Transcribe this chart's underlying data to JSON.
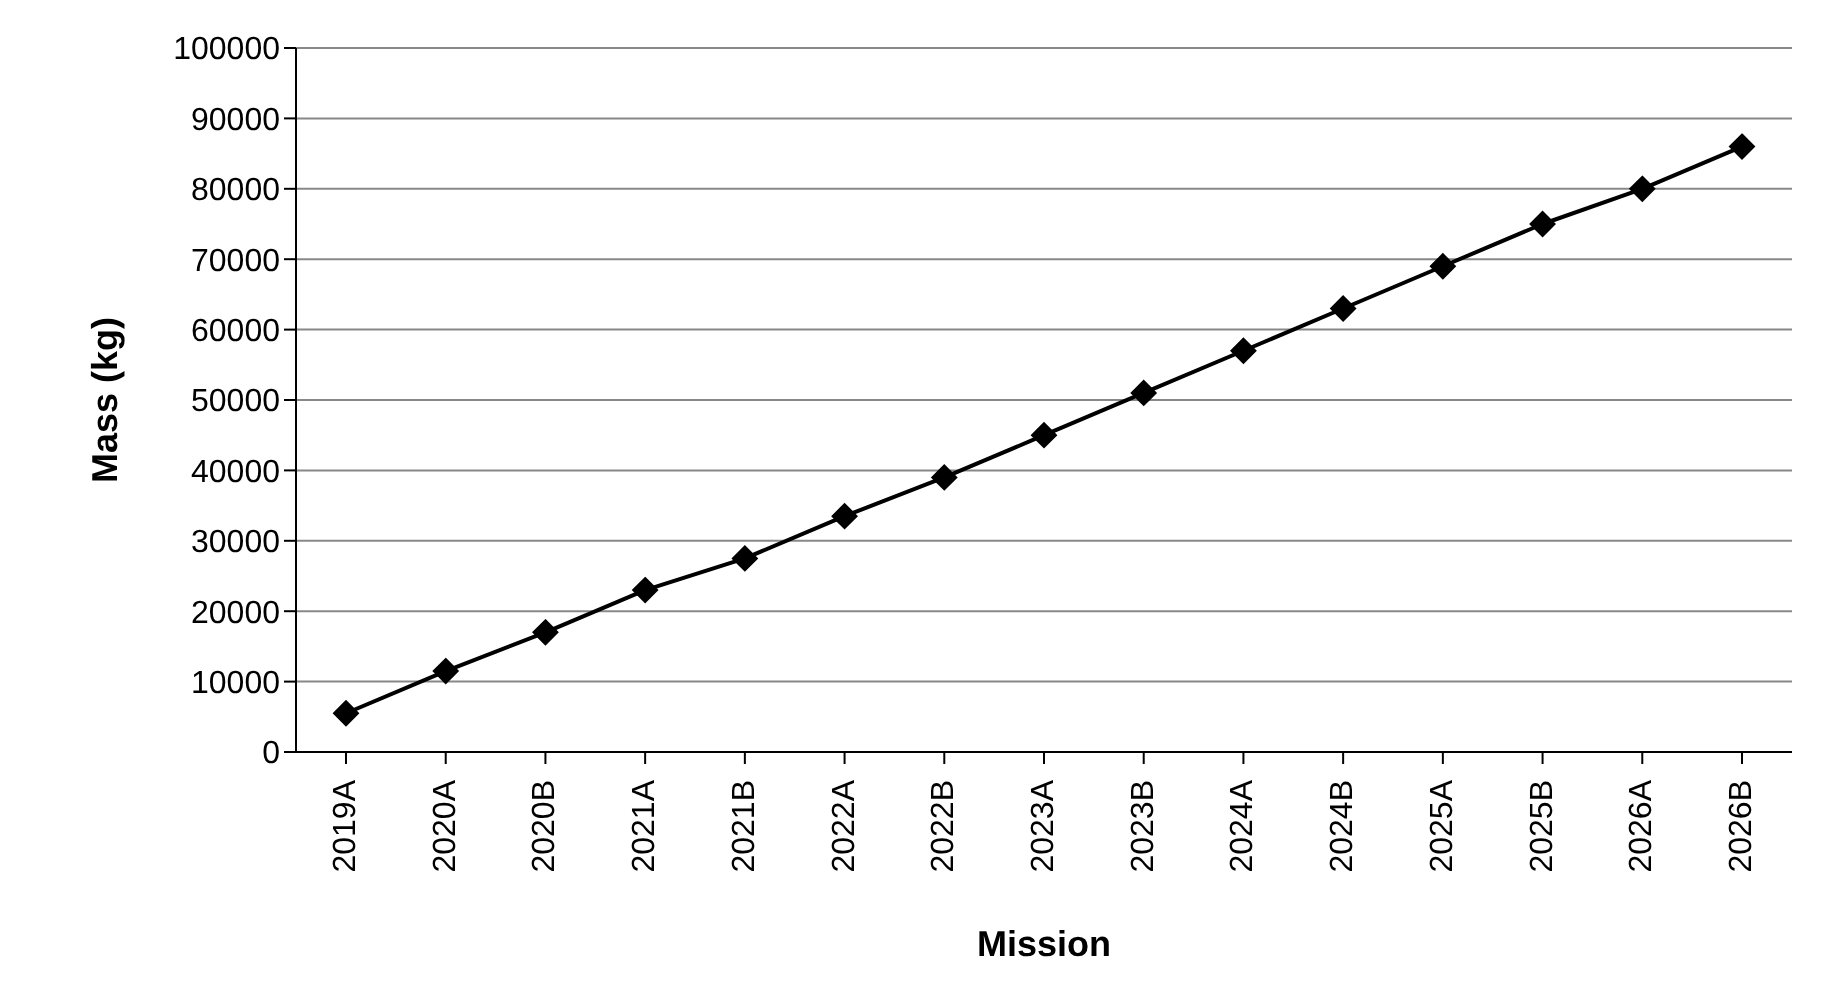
{
  "chart_data": {
    "type": "line",
    "xlabel": "Mission",
    "ylabel": "Mass (kg)",
    "categories": [
      "2019A",
      "2020A",
      "2020B",
      "2021A",
      "2021B",
      "2022A",
      "2022B",
      "2023A",
      "2023B",
      "2024A",
      "2024B",
      "2025A",
      "2025B",
      "2026A",
      "2026B"
    ],
    "series": [
      {
        "color": "#000000",
        "values": [
          5500,
          11500,
          17000,
          23000,
          27500,
          33500,
          39000,
          45000,
          51000,
          57000,
          63000,
          69000,
          75000,
          80000,
          86000
        ]
      }
    ],
    "ylim": [
      0,
      100000
    ],
    "yticks": [
      0,
      10000,
      20000,
      30000,
      40000,
      50000,
      60000,
      70000,
      80000,
      90000,
      100000
    ],
    "grid": "y",
    "marker": "diamond",
    "line_style": "solid",
    "legend": false
  }
}
